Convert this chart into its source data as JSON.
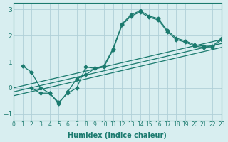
{
  "background_color": "#d8eef0",
  "grid_color": "#b0d0d8",
  "line_color": "#1a7a6e",
  "xlabel": "Humidex (Indice chaleur)",
  "xlim": [
    0,
    23
  ],
  "ylim": [
    -1.25,
    3.25
  ],
  "yticks": [
    -1,
    0,
    1,
    2,
    3
  ],
  "xticks": [
    0,
    1,
    2,
    3,
    4,
    5,
    6,
    7,
    8,
    9,
    10,
    11,
    12,
    13,
    14,
    15,
    16,
    17,
    18,
    19,
    20,
    21,
    22,
    23
  ],
  "series": [
    {
      "x": [
        1,
        2,
        3,
        4,
        5,
        6,
        7,
        8,
        9,
        10,
        11,
        12,
        13,
        14,
        15,
        16,
        17,
        18,
        19,
        20,
        21,
        22,
        23
      ],
      "y": [
        0.85,
        0.6,
        0.0,
        -0.2,
        -0.55,
        -0.2,
        0.0,
        0.8,
        0.75,
        0.85,
        1.5,
        2.45,
        2.8,
        2.95,
        2.75,
        2.65,
        2.2,
        1.9,
        1.8,
        1.65,
        1.6,
        1.6,
        1.9
      ]
    },
    {
      "x": [
        2,
        3,
        4,
        5,
        6,
        7,
        8,
        9,
        10,
        11,
        12,
        13,
        14,
        15,
        16,
        17,
        18,
        19,
        20,
        21,
        22,
        23
      ],
      "y": [
        0.0,
        -0.2,
        -0.2,
        -0.6,
        -0.15,
        0.35,
        0.5,
        0.75,
        0.8,
        1.45,
        2.4,
        2.75,
        2.9,
        2.7,
        2.6,
        2.15,
        1.85,
        1.75,
        1.6,
        1.55,
        1.55,
        1.85
      ]
    },
    {
      "x": [
        0,
        23
      ],
      "y": [
        0.0,
        1.85
      ],
      "line_only": true
    },
    {
      "x": [
        0,
        23
      ],
      "y": [
        -0.15,
        1.7
      ],
      "line_only": true
    },
    {
      "x": [
        0,
        23
      ],
      "y": [
        -0.3,
        1.55
      ],
      "line_only": true
    }
  ]
}
